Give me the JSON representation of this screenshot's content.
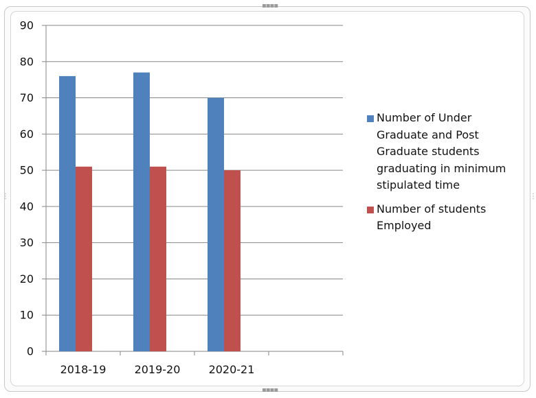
{
  "chart_data": {
    "type": "bar",
    "title": "",
    "xlabel": "",
    "ylabel": "",
    "categories": [
      "2018-19",
      "2019-20",
      "2020-21",
      ""
    ],
    "series": [
      {
        "name": "Number of Under Graduate and Post Graduate students graduating in minimum stipulated time",
        "color": "#4f81bd",
        "values": [
          76,
          77,
          70,
          null
        ]
      },
      {
        "name": "Number of students Employed",
        "color": "#c0504d",
        "values": [
          51,
          51,
          50,
          null
        ]
      }
    ],
    "ylim": [
      0,
      90
    ],
    "yticks": [
      0,
      10,
      20,
      30,
      40,
      50,
      60,
      70,
      80,
      90
    ],
    "grid": true,
    "legend_position": "right"
  }
}
